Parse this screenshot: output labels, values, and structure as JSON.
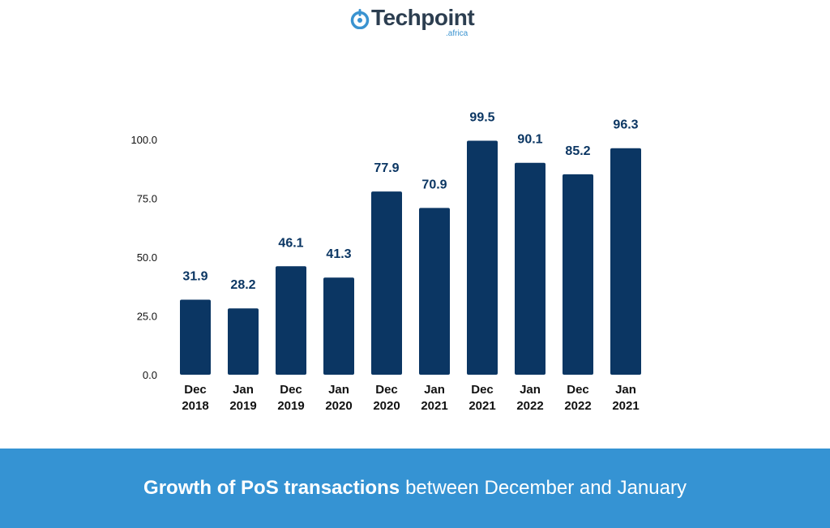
{
  "logo": {
    "name": "Techpoint",
    "sub": ".africa"
  },
  "colors": {
    "bar": "#0b3663",
    "label": "#0b3663",
    "banner": "#3593d3"
  },
  "chart_data": {
    "type": "bar",
    "categories": [
      [
        "Dec",
        "2018"
      ],
      [
        "Jan",
        "2019"
      ],
      [
        "Dec",
        "2019"
      ],
      [
        "Jan",
        "2020"
      ],
      [
        "Dec",
        "2020"
      ],
      [
        "Jan",
        "2021"
      ],
      [
        "Dec",
        "2021"
      ],
      [
        "Jan",
        "2022"
      ],
      [
        "Dec",
        "2022"
      ],
      [
        "Jan",
        "2021"
      ]
    ],
    "values": [
      31.9,
      28.2,
      46.1,
      41.3,
      77.9,
      70.9,
      99.5,
      90.1,
      85.2,
      96.3
    ],
    "value_labels": [
      "31.9",
      "28.2",
      "46.1",
      "41.3",
      "77.9",
      "70.9",
      "99.5",
      "90.1",
      "85.2",
      "96.3"
    ],
    "yticks": [
      "0.0",
      "25.0",
      "50.0",
      "75.0",
      "100.0"
    ],
    "ytick_values": [
      0,
      25,
      50,
      75,
      100
    ],
    "ylim": [
      0,
      100
    ],
    "title": "",
    "xlabel": "",
    "ylabel": ""
  },
  "footer": {
    "bold": "Growth of PoS transactions",
    "rest": "between December and January"
  }
}
